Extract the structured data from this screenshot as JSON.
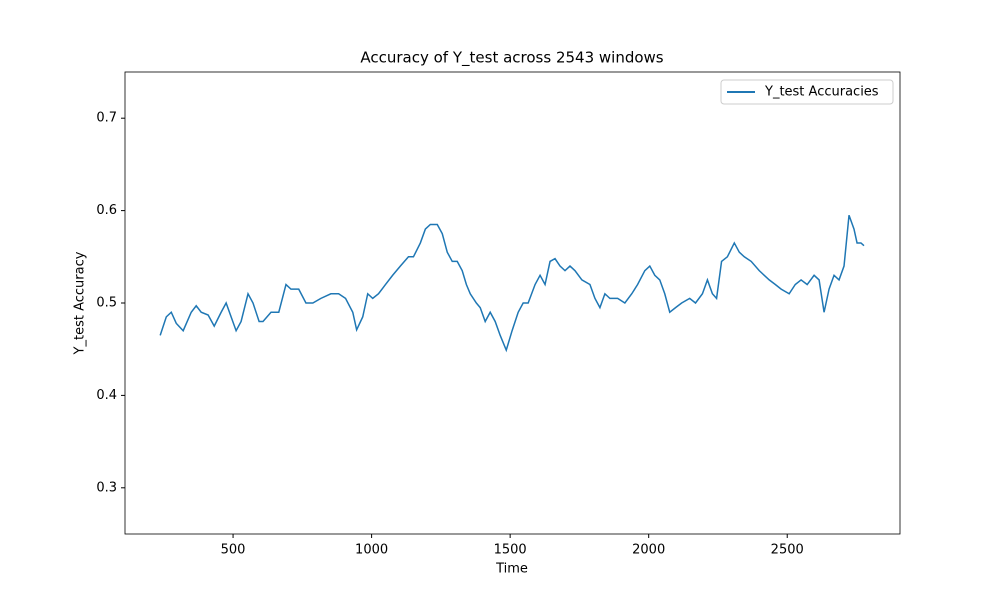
{
  "chart_data": {
    "type": "line",
    "title": "Accuracy of Y_test across 2543 windows",
    "x_label": "Time",
    "y_label": "Y_test Accuracy",
    "legend": "upper right",
    "xlim": [
      110,
      2907
    ],
    "ylim": [
      0.25,
      0.75
    ],
    "xticks": [
      500,
      1000,
      1500,
      2000,
      2500
    ],
    "yticks": [
      0.3,
      0.4,
      0.5,
      0.6,
      0.7
    ],
    "x": [
      237,
      259,
      277,
      295,
      320,
      349,
      367,
      385,
      410,
      432,
      457,
      475,
      493,
      511,
      529,
      554,
      572,
      594,
      608,
      637,
      665,
      691,
      709,
      737,
      763,
      788,
      817,
      853,
      881,
      906,
      932,
      946,
      968,
      986,
      1004,
      1025,
      1050,
      1076,
      1104,
      1133,
      1151,
      1176,
      1194,
      1212,
      1237,
      1255,
      1273,
      1291,
      1309,
      1327,
      1342,
      1356,
      1378,
      1392,
      1410,
      1428,
      1446,
      1464,
      1486,
      1507,
      1529,
      1547,
      1565,
      1590,
      1608,
      1626,
      1644,
      1662,
      1680,
      1698,
      1716,
      1734,
      1759,
      1788,
      1806,
      1824,
      1842,
      1860,
      1888,
      1914,
      1939,
      1960,
      1986,
      2004,
      2022,
      2040,
      2058,
      2076,
      2097,
      2119,
      2148,
      2169,
      2194,
      2212,
      2230,
      2245,
      2263,
      2284,
      2309,
      2327,
      2345,
      2370,
      2399,
      2417,
      2435,
      2457,
      2478,
      2507,
      2529,
      2550,
      2572,
      2597,
      2615,
      2633,
      2651,
      2669,
      2687,
      2705,
      2723,
      2741,
      2752,
      2766,
      2777
    ],
    "series": [
      {
        "name": "Y_test Accuracies",
        "color": "#1f77b4",
        "values": [
          0.465,
          0.485,
          0.49,
          0.478,
          0.47,
          0.49,
          0.497,
          0.49,
          0.487,
          0.475,
          0.49,
          0.5,
          0.485,
          0.47,
          0.48,
          0.51,
          0.5,
          0.48,
          0.48,
          0.49,
          0.49,
          0.52,
          0.515,
          0.515,
          0.5,
          0.5,
          0.505,
          0.51,
          0.51,
          0.505,
          0.49,
          0.471,
          0.485,
          0.51,
          0.505,
          0.51,
          0.52,
          0.53,
          0.54,
          0.55,
          0.55,
          0.565,
          0.58,
          0.585,
          0.585,
          0.575,
          0.555,
          0.545,
          0.545,
          0.535,
          0.52,
          0.51,
          0.5,
          0.495,
          0.48,
          0.49,
          0.48,
          0.465,
          0.449,
          0.47,
          0.49,
          0.5,
          0.5,
          0.52,
          0.53,
          0.52,
          0.545,
          0.548,
          0.54,
          0.535,
          0.54,
          0.535,
          0.525,
          0.52,
          0.505,
          0.495,
          0.51,
          0.505,
          0.505,
          0.5,
          0.51,
          0.52,
          0.535,
          0.54,
          0.53,
          0.525,
          0.51,
          0.49,
          0.495,
          0.5,
          0.505,
          0.5,
          0.51,
          0.525,
          0.51,
          0.505,
          0.545,
          0.55,
          0.565,
          0.555,
          0.55,
          0.545,
          0.535,
          0.53,
          0.525,
          0.52,
          0.515,
          0.51,
          0.52,
          0.525,
          0.52,
          0.53,
          0.525,
          0.49,
          0.515,
          0.53,
          0.525,
          0.54,
          0.595,
          0.58,
          0.565,
          0.565,
          0.562
        ]
      }
    ]
  }
}
